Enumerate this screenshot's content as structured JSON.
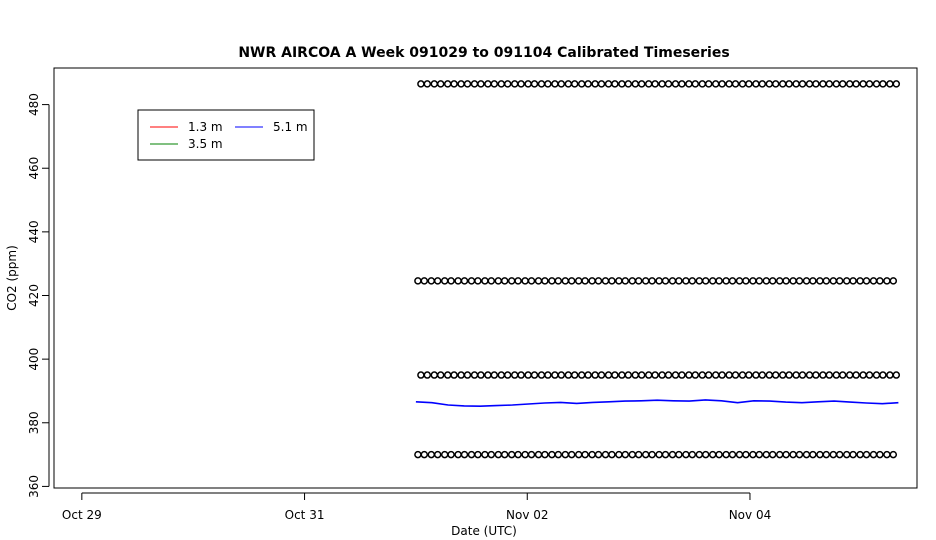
{
  "chart_data": {
    "type": "line",
    "title": "NWR AIRCOA A  Week 091029 to 091104  Calibrated Timeseries",
    "xlabel": "Date (UTC)",
    "ylabel": "CO2 (ppm)",
    "x_is_date": true,
    "xlim": [
      "2009-10-28T18:00Z",
      "2009-11-05T12:00Z"
    ],
    "x_ticks": [
      "2009-10-29T00:00Z",
      "2009-10-31T00:00Z",
      "2009-11-02T00:00Z",
      "2009-11-04T00:00Z"
    ],
    "x_tick_labels": [
      "Oct 29",
      "Oct 31",
      "Nov 02",
      "Nov 04"
    ],
    "ylim": [
      359.5,
      491.5
    ],
    "y_ticks": [
      360,
      380,
      400,
      420,
      440,
      460,
      480
    ],
    "y_tick_labels": [
      "360",
      "380",
      "400",
      "420",
      "440",
      "460",
      "480"
    ],
    "grid": false,
    "legend_position": "top-left",
    "legend": [
      {
        "label": "1.3 m",
        "color": "#ff0000"
      },
      {
        "label": "3.5 m",
        "color": "#008000"
      },
      {
        "label": "5.1 m",
        "color": "#0000ff"
      }
    ],
    "series": [
      {
        "name": "5.1 m",
        "color": "#0000ff",
        "x_range": [
          "2009-11-01T00:00Z",
          "2009-11-05T08:00Z"
        ],
        "values": [
          386.6,
          386.3,
          385.6,
          385.3,
          385.2,
          385.4,
          385.6,
          385.9,
          386.2,
          386.4,
          386.1,
          386.4,
          386.6,
          386.8,
          386.9,
          387.1,
          386.9,
          386.8,
          387.2,
          386.9,
          386.3,
          386.9,
          386.8,
          386.5,
          386.3,
          386.6,
          386.8,
          386.5,
          386.2,
          386.0,
          386.3
        ]
      }
    ],
    "calibration_markers": {
      "marker": "open-circle",
      "color": "#000000",
      "x_range": [
        "2009-11-01T00:00Z",
        "2009-11-05T08:00Z"
      ],
      "levels": [
        370.0,
        395.0,
        424.6,
        486.5
      ]
    }
  }
}
